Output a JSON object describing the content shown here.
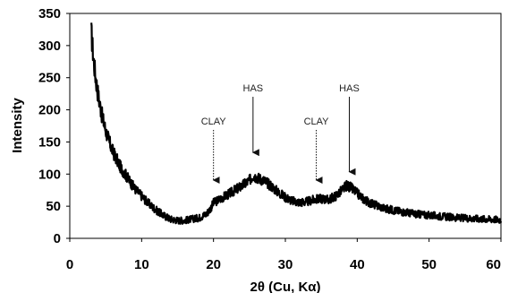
{
  "chart_data": {
    "type": "line",
    "title": "",
    "xlabel": "2θ (Cu, Kα)",
    "ylabel": "Intensity",
    "xlim": [
      0,
      60
    ],
    "ylim": [
      0,
      350
    ],
    "x_ticks": [
      "0",
      "10",
      "20",
      "30",
      "40",
      "50",
      "60"
    ],
    "y_ticks": [
      "0",
      "50",
      "100",
      "150",
      "200",
      "250",
      "300",
      "350"
    ],
    "grid": false,
    "legend": "none",
    "line_color": "#000000",
    "series": [
      {
        "name": "",
        "x": [
          3,
          3.3,
          3.6,
          4,
          4.5,
          5,
          5.5,
          6,
          7,
          8,
          9,
          10,
          11,
          12,
          13,
          14,
          15,
          16,
          17,
          18,
          19,
          19.5,
          20,
          21,
          22,
          23,
          24,
          25,
          25.5,
          26,
          27,
          28,
          29,
          30,
          31,
          32,
          33,
          34,
          35,
          36,
          37,
          38,
          38.5,
          39,
          40,
          41,
          42,
          43,
          44,
          45,
          46,
          47,
          48,
          49,
          50,
          52,
          54,
          56,
          58,
          60
        ],
        "y": [
          320,
          280,
          250,
          220,
          190,
          168,
          150,
          135,
          112,
          95,
          78,
          66,
          54,
          44,
          36,
          30,
          28,
          28,
          30,
          32,
          38,
          45,
          55,
          62,
          68,
          75,
          82,
          90,
          98,
          95,
          90,
          82,
          72,
          64,
          58,
          56,
          57,
          60,
          62,
          60,
          66,
          76,
          82,
          80,
          70,
          60,
          54,
          50,
          46,
          44,
          42,
          40,
          38,
          37,
          36,
          34,
          32,
          31,
          30,
          29
        ]
      }
    ],
    "annotations": [
      {
        "label": "CLAY",
        "x": 20,
        "y": 85,
        "style": "dotted"
      },
      {
        "label": "HAS",
        "x": 25.5,
        "y": 128,
        "style": "solid"
      },
      {
        "label": "CLAY",
        "x": 34.3,
        "y": 85,
        "style": "dotted"
      },
      {
        "label": "HAS",
        "x": 38.9,
        "y": 98,
        "style": "solid"
      }
    ]
  }
}
